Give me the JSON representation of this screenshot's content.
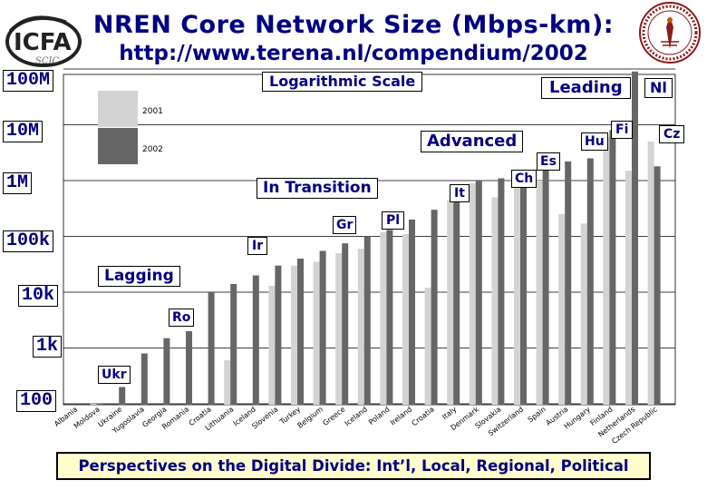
{
  "header": {
    "title": "NREN Core Network Size (Mbps-km):",
    "url": "http://www.terena.nl/compendium/2002",
    "logo_left_text": "ICFA",
    "logo_left_subtext": "SCIC"
  },
  "labels": {
    "log_scale": "Logarithmic Scale",
    "legend_2001": "2001",
    "legend_2002": "2002",
    "footer": "Perspectives on the Digital Divide: Int’l, Local, Regional, Political"
  },
  "chart_data": {
    "type": "bar",
    "title": "NREN Core Network Size (Mbps-km):",
    "yscale": "log",
    "ylim": [
      100,
      100000000
    ],
    "grid": true,
    "y_tick_labels": [
      "100M",
      "10M",
      "1M",
      "100k",
      "10k",
      "1k",
      "100"
    ],
    "y_tick_values": [
      100000000,
      10000000,
      1000000,
      100000,
      10000,
      1000,
      100
    ],
    "legend": [
      {
        "name": "2001",
        "color": "#d3d3d3"
      },
      {
        "name": "2002",
        "color": "#666666"
      }
    ],
    "categories": [
      "Albania",
      "Moldova",
      "Ukraine",
      "Yugoslavia",
      "Georgia",
      "Romania",
      "Croatia",
      "Lithuania",
      "Iceland",
      "Slovenia",
      "Turkey",
      "Belgium",
      "Greece",
      "Iceland",
      "Poland",
      "Ireland",
      "Croatia",
      "Italy",
      "Denmark",
      "Slovakia",
      "Switzerland",
      "Spain",
      "Austria",
      "Hungary",
      "Finland",
      "Netherlands",
      "Czech Republic"
    ],
    "series": [
      {
        "name": "2001",
        "values": [
          null,
          100,
          null,
          null,
          null,
          null,
          null,
          600,
          null,
          13000,
          30000,
          35000,
          50000,
          60000,
          120000,
          110000,
          12000,
          450000,
          900000,
          500000,
          900000,
          1000000,
          250000,
          170000,
          6000000,
          1500000,
          5000000
        ]
      },
      {
        "name": "2002",
        "values": [
          null,
          100,
          200,
          800,
          1500,
          2000,
          10000,
          14000,
          20000,
          30000,
          40000,
          55000,
          75000,
          100000,
          130000,
          200000,
          300000,
          550000,
          1000000,
          1100000,
          1400000,
          2500000,
          2200000,
          2500000,
          8000000,
          90000000,
          1800000
        ]
      }
    ],
    "annotations": [
      {
        "text": "Leading",
        "kind": "group"
      },
      {
        "text": "Advanced",
        "kind": "group"
      },
      {
        "text": "In Transition",
        "kind": "group"
      },
      {
        "text": "Lagging",
        "kind": "group"
      },
      {
        "text": "Nl",
        "kind": "country"
      },
      {
        "text": "Cz",
        "kind": "country"
      },
      {
        "text": "Fi",
        "kind": "country"
      },
      {
        "text": "Hu",
        "kind": "country"
      },
      {
        "text": "Es",
        "kind": "country"
      },
      {
        "text": "Ch",
        "kind": "country"
      },
      {
        "text": "It",
        "kind": "country"
      },
      {
        "text": "Pl",
        "kind": "country"
      },
      {
        "text": "Gr",
        "kind": "country"
      },
      {
        "text": "Ir",
        "kind": "country"
      },
      {
        "text": "Ro",
        "kind": "country"
      },
      {
        "text": "Ukr",
        "kind": "country"
      }
    ]
  }
}
